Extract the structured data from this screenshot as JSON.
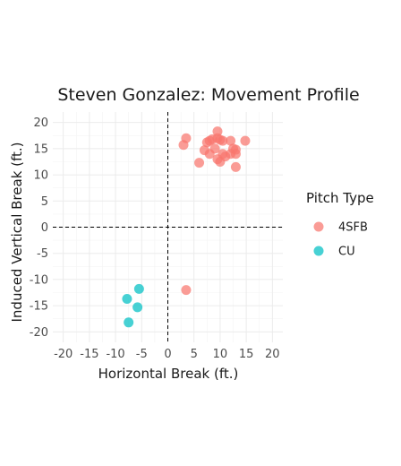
{
  "chart_data": {
    "type": "scatter",
    "title": "Steven Gonzalez: Movement Profile",
    "xlabel": "Horizontal Break (ft.)",
    "ylabel": "Induced Vertical Break (ft.)",
    "xlim": [
      -22,
      22
    ],
    "ylim": [
      -22,
      22
    ],
    "x_ticks": [
      -20,
      -15,
      -10,
      -5,
      0,
      5,
      10,
      15,
      20
    ],
    "y_ticks": [
      -20,
      -15,
      -10,
      -5,
      0,
      5,
      10,
      15,
      20
    ],
    "reference_lines": {
      "x": 0,
      "y": 0,
      "style": "dashed"
    },
    "grid": true,
    "legend": {
      "title": "Pitch Type",
      "position": "right"
    },
    "series": [
      {
        "name": "4SFB",
        "color": "#F8766D",
        "points": [
          [
            3.5,
            17
          ],
          [
            3,
            15.7
          ],
          [
            6,
            12.3
          ],
          [
            7,
            14.7
          ],
          [
            7.5,
            16.2
          ],
          [
            8,
            16.5
          ],
          [
            8.5,
            16.8
          ],
          [
            8,
            14
          ],
          [
            9,
            15
          ],
          [
            9.5,
            18.3
          ],
          [
            9.5,
            17
          ],
          [
            9.5,
            13
          ],
          [
            10,
            16.7
          ],
          [
            10.5,
            16.5
          ],
          [
            10,
            12.5
          ],
          [
            10.5,
            14
          ],
          [
            11,
            13.5
          ],
          [
            12,
            16.5
          ],
          [
            12,
            14
          ],
          [
            12.5,
            15
          ],
          [
            13,
            14.8
          ],
          [
            13,
            14
          ],
          [
            13,
            11.5
          ],
          [
            14.8,
            16.5
          ],
          [
            3.5,
            -12
          ]
        ]
      },
      {
        "name": "CU",
        "color": "#00BFC4",
        "points": [
          [
            -5.5,
            -11.8
          ],
          [
            -7.8,
            -13.7
          ],
          [
            -5.8,
            -15.3
          ],
          [
            -7.5,
            -18.2
          ]
        ]
      }
    ]
  }
}
